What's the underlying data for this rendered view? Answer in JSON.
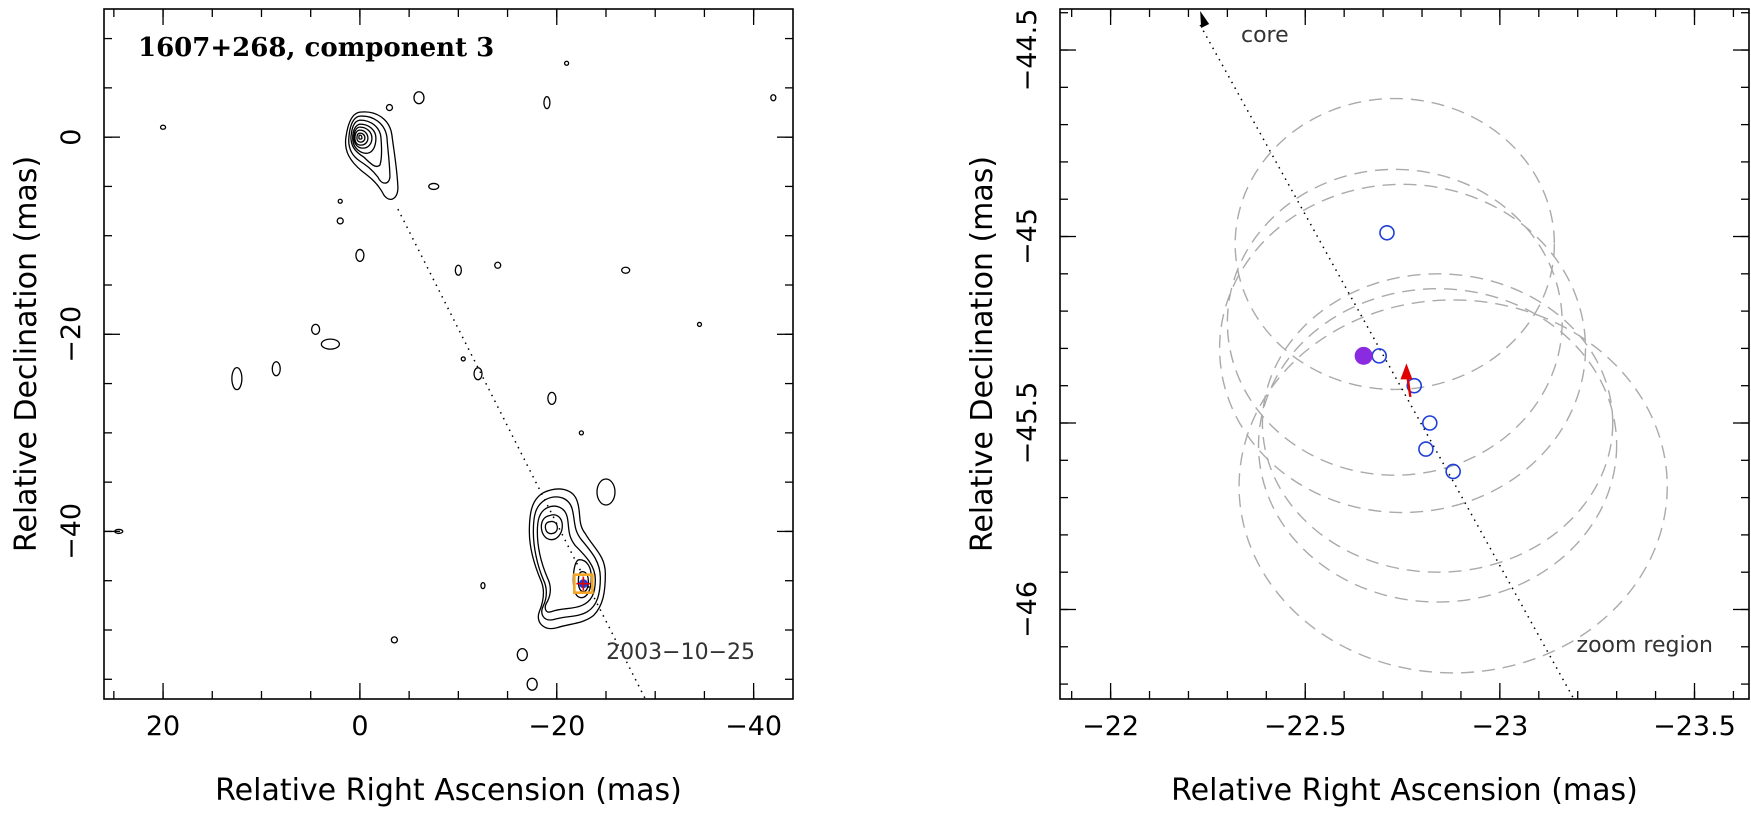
{
  "colors": {
    "component_circle": "#1f3fd9",
    "reference_point": "#8a2be2",
    "motion_arrow": "#e00000",
    "marker_box": "#f5a623",
    "ellipse": "#aaaaaa"
  },
  "chart_data": [
    {
      "type": "contour",
      "title": "1607+268, component 3",
      "xlabel": "Relative Right Ascension (mas)",
      "ylabel": "Relative Declination (mas)",
      "xlim": [
        26,
        -44
      ],
      "ylim": [
        -57,
        13
      ],
      "x_ticks": [
        20,
        0,
        -20,
        -40
      ],
      "x_tick_labels": [
        "20",
        "0",
        "−20",
        "−40"
      ],
      "y_ticks": [
        0,
        -20,
        -40
      ],
      "y_tick_labels": [
        "0",
        "−20",
        "−40"
      ],
      "epoch_label": "2003−10−25",
      "jet_axis": [
        [
          0,
          0
        ],
        [
          -29,
          -57
        ]
      ],
      "core": {
        "x": 0,
        "y": 0
      },
      "component_3": {
        "x": -22.7,
        "y": -45.3
      }
    },
    {
      "type": "scatter",
      "xlabel": "Relative Right Ascension (mas)",
      "ylabel": "Relative Declination (mas)",
      "xlim": [
        -21.87,
        -23.64
      ],
      "ylim": [
        -46.24,
        -44.39
      ],
      "x_ticks": [
        -22,
        -22.5,
        -23,
        -23.5
      ],
      "x_tick_labels": [
        "−22",
        "−22.5",
        "−23",
        "−23.5"
      ],
      "y_ticks": [
        -44.5,
        -45,
        -45.5,
        -46
      ],
      "y_tick_labels": [
        "−44.5",
        "−45",
        "−45.5",
        "−46"
      ],
      "core_label": "core",
      "zoom_label": "zoom region",
      "jet_axis": [
        [
          -22.23,
          -44.39
        ],
        [
          -23.19,
          -46.24
        ]
      ],
      "reference_point": {
        "x": -22.65,
        "y": -45.32
      },
      "component_positions": [
        {
          "x": -22.71,
          "y": -44.99
        },
        {
          "x": -22.69,
          "y": -45.32
        },
        {
          "x": -22.78,
          "y": -45.4
        },
        {
          "x": -22.82,
          "y": -45.5
        },
        {
          "x": -22.81,
          "y": -45.57
        },
        {
          "x": -22.88,
          "y": -45.63
        }
      ],
      "motion_arrow": {
        "from": {
          "x": -22.77,
          "y": -45.43
        },
        "to": {
          "x": -22.76,
          "y": -45.34
        }
      },
      "position_ellipses": [
        {
          "cx": -22.73,
          "cy": -45.02,
          "rx": 0.41,
          "ry": 0.39
        },
        {
          "cx": -22.73,
          "cy": -45.23,
          "rx": 0.43,
          "ry": 0.41
        },
        {
          "cx": -22.75,
          "cy": -45.3,
          "rx": 0.47,
          "ry": 0.44
        },
        {
          "cx": -22.84,
          "cy": -45.5,
          "rx": 0.45,
          "ry": 0.4
        },
        {
          "cx": -22.84,
          "cy": -45.56,
          "rx": 0.46,
          "ry": 0.42
        },
        {
          "cx": -22.88,
          "cy": -45.67,
          "rx": 0.55,
          "ry": 0.5
        }
      ]
    }
  ]
}
